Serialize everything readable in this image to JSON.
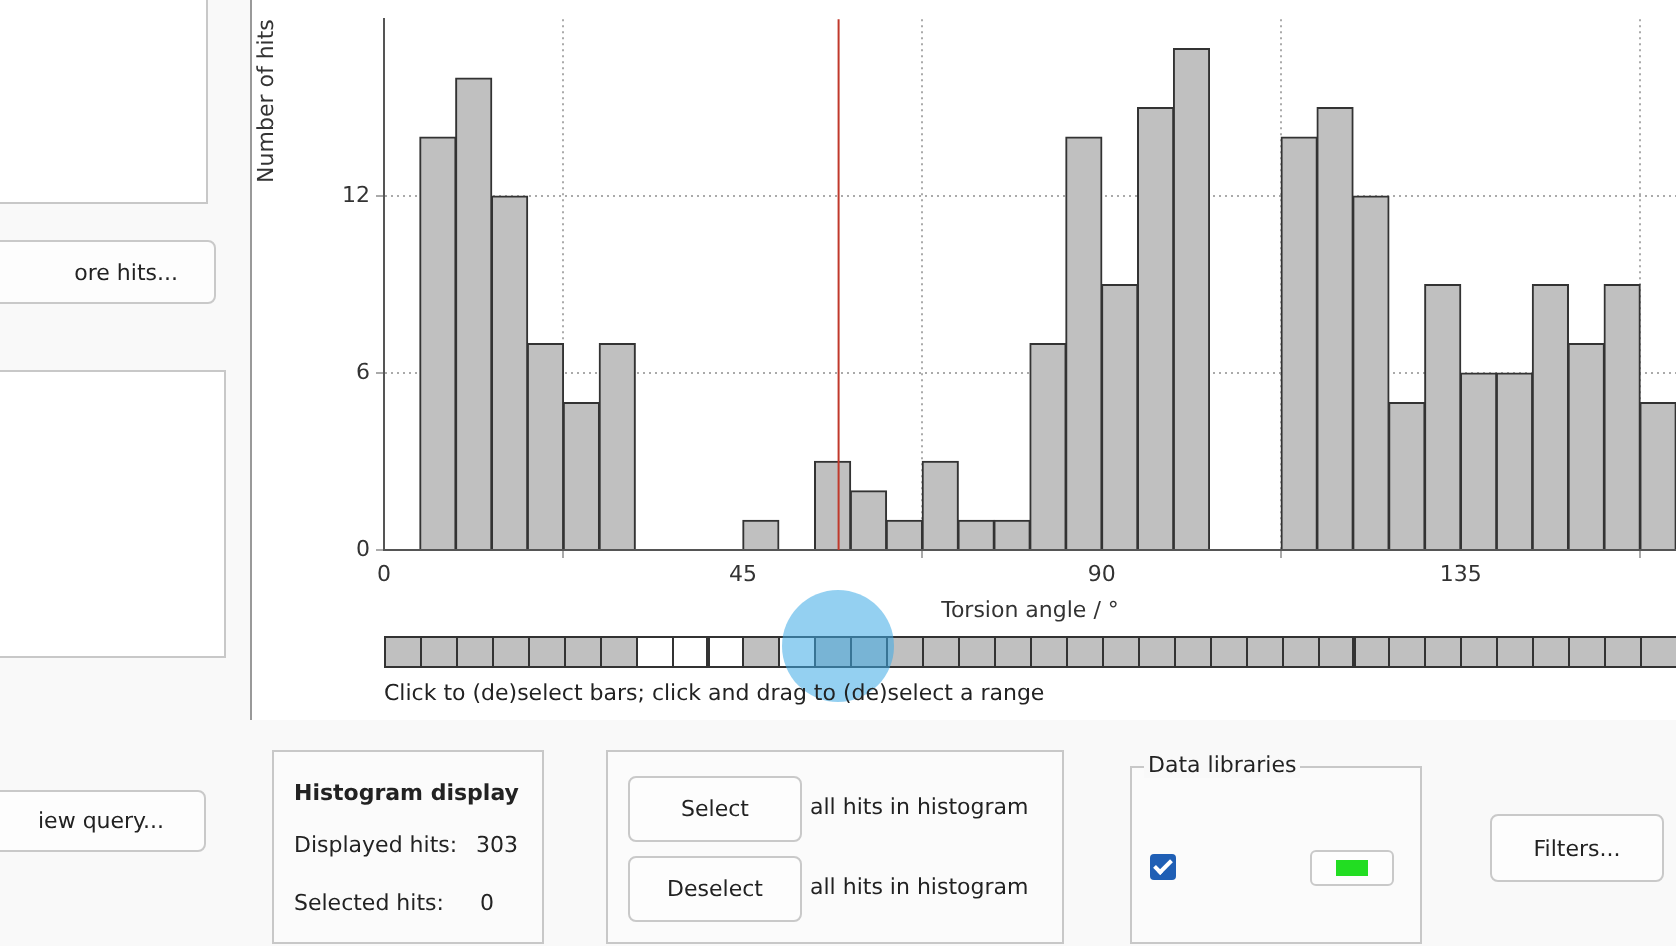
{
  "chart_data": {
    "type": "histogram",
    "xlabel": "Torsion angle / °",
    "ylabel": "Number of hits",
    "bins": [
      0,
      4.5,
      9,
      13.5,
      18,
      22.5,
      27,
      31.5,
      36,
      40.5,
      45,
      49.5,
      54,
      58.5,
      63,
      67.5,
      72,
      76.5,
      81,
      85.5,
      90,
      94.5,
      99,
      103.5,
      108,
      112.5,
      117,
      121.5,
      126,
      130.5,
      135,
      139.5,
      144,
      148.5,
      153,
      157.5,
      162
    ],
    "values": [
      null,
      14,
      16,
      12,
      7,
      5,
      7,
      0,
      0,
      0,
      1,
      0,
      3,
      2,
      1,
      3,
      1,
      1,
      7,
      14,
      9,
      15,
      17,
      null,
      null,
      14,
      15,
      12,
      5,
      9,
      6,
      6,
      9,
      7,
      9,
      5
    ],
    "color": "#c0c0c0",
    "xlim": [
      0,
      162
    ],
    "xticks": [
      0,
      45,
      90,
      135
    ],
    "ylim": [
      0,
      18
    ],
    "yticks": [
      0,
      6,
      12
    ],
    "grid": true,
    "legend": false,
    "ref_lines": [
      {
        "axis": "x",
        "value": 57,
        "color": "#c0392b"
      }
    ],
    "annotations": [
      "Click to (de)select bars; click and drag to (de)select a range",
      "ore hits...",
      "iew query...",
      "Histogram display",
      "Displayed hits:",
      "303",
      "Selected hits:",
      "0",
      "Select",
      "all hits in histogram",
      "Deselect",
      "all hits in histogram",
      "Data libraries",
      "Filters..."
    ]
  }
}
